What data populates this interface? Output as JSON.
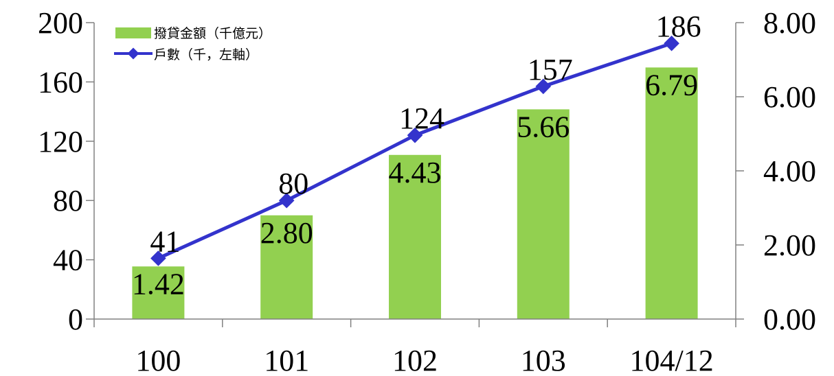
{
  "chart_data": {
    "type": "bar",
    "categories": [
      "100",
      "101",
      "102",
      "103",
      "104/12"
    ],
    "series": [
      {
        "name": "撥貸金額（千億元）",
        "type": "bar",
        "axis": "right",
        "values": [
          1.42,
          2.8,
          4.43,
          5.66,
          6.79
        ],
        "labels": [
          "1.42",
          "2.80",
          "4.43",
          "5.66",
          "6.79"
        ],
        "color": "#92d050"
      },
      {
        "name": "戶數（千，左軸）",
        "type": "line",
        "axis": "left",
        "values": [
          41,
          80,
          124,
          157,
          186
        ],
        "labels": [
          "41",
          "80",
          "124",
          "157",
          "186"
        ],
        "color": "#3333cc"
      }
    ],
    "left_axis": {
      "ylim": [
        0,
        200
      ],
      "ticks": [
        0,
        40,
        80,
        120,
        160,
        200
      ],
      "tick_labels": [
        "0",
        "40",
        "80",
        "120",
        "160",
        "200"
      ]
    },
    "right_axis": {
      "ylim": [
        0,
        8
      ],
      "ticks": [
        0,
        2,
        4,
        6,
        8
      ],
      "tick_labels": [
        "0.00",
        "2.00",
        "4.00",
        "6.00",
        "8.00"
      ]
    },
    "legend_position": "top-left",
    "grid": false
  }
}
